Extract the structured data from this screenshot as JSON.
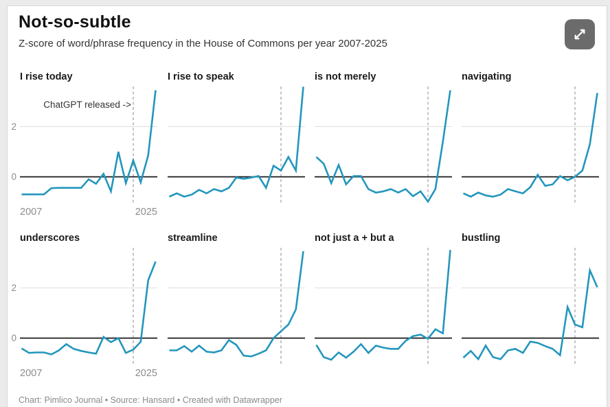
{
  "header": {
    "title": "Not-so-subtle",
    "subtitle": "Z-score of word/phrase frequency in the House of Commons per year 2007-2025"
  },
  "controls": {
    "expand_button": "expand-chart"
  },
  "footer": {
    "text": "Chart: Pimlico Journal • Source: Hansard • Created with Datawrapper"
  },
  "colors": {
    "line": "#2396bd",
    "zero_line": "#1a1a1a",
    "gridline": "#dedede",
    "dashed_line": "#ababab",
    "tick_label": "#8c8c8c",
    "annotation": "#333333",
    "expand_bg": "#6b6b6b"
  },
  "chart_data": {
    "type": "line",
    "layout": "small-multiples-2x4",
    "title": "Not-so-subtle",
    "subtitle": "Z-score of word/phrase frequency in the House of Commons per year 2007-2025",
    "x": [
      2007,
      2008,
      2009,
      2010,
      2011,
      2012,
      2013,
      2014,
      2015,
      2016,
      2017,
      2018,
      2019,
      2020,
      2021,
      2022,
      2023,
      2024,
      2025
    ],
    "x_tick_labels": [
      "2007",
      "2025"
    ],
    "y_ticks": [
      2,
      0
    ],
    "ylim": [
      -1.05,
      3.6
    ],
    "grid": "y-gridline-at-2, solid-baseline-at-0",
    "legend": "none",
    "vline": {
      "x": 2022,
      "style": "dashed",
      "shown_on": "all panels"
    },
    "annotation": {
      "text": "ChatGPT released ->",
      "panel": "I rise today",
      "points_to": "dashed vline"
    },
    "series": [
      {
        "name": "I rise today",
        "values": [
          -0.7,
          -0.7,
          -0.7,
          -0.7,
          -0.45,
          -0.44,
          -0.44,
          -0.44,
          -0.44,
          -0.1,
          -0.28,
          0.12,
          -0.58,
          1.0,
          -0.25,
          0.65,
          -0.22,
          0.85,
          3.45
        ]
      },
      {
        "name": "I rise to speak",
        "values": [
          -0.79,
          -0.66,
          -0.79,
          -0.71,
          -0.52,
          -0.66,
          -0.49,
          -0.58,
          -0.44,
          -0.03,
          -0.08,
          -0.03,
          0.03,
          -0.44,
          0.44,
          0.25,
          0.79,
          0.25,
          3.59
        ]
      },
      {
        "name": "is not merely",
        "values": [
          0.79,
          0.52,
          -0.25,
          0.47,
          -0.3,
          0.03,
          0.03,
          -0.49,
          -0.63,
          -0.58,
          -0.49,
          -0.63,
          -0.49,
          -0.77,
          -0.58,
          -0.99,
          -0.49,
          1.4,
          3.45
        ]
      },
      {
        "name": "navigating",
        "values": [
          -0.66,
          -0.79,
          -0.63,
          -0.74,
          -0.79,
          -0.71,
          -0.49,
          -0.58,
          -0.66,
          -0.41,
          0.08,
          -0.36,
          -0.3,
          0.03,
          -0.14,
          0.0,
          0.25,
          1.3,
          3.34
        ]
      },
      {
        "name": "underscores",
        "values": [
          -0.41,
          -0.59,
          -0.57,
          -0.57,
          -0.65,
          -0.49,
          -0.24,
          -0.43,
          -0.51,
          -0.57,
          -0.62,
          0.05,
          -0.16,
          0.0,
          -0.59,
          -0.46,
          -0.15,
          2.3,
          3.05
        ]
      },
      {
        "name": "streamline",
        "values": [
          -0.49,
          -0.49,
          -0.32,
          -0.54,
          -0.3,
          -0.54,
          -0.57,
          -0.49,
          -0.08,
          -0.27,
          -0.7,
          -0.73,
          -0.62,
          -0.49,
          0.0,
          0.27,
          0.54,
          1.14,
          3.46
        ]
      },
      {
        "name": "not just a + but a",
        "values": [
          -0.27,
          -0.76,
          -0.86,
          -0.57,
          -0.78,
          -0.54,
          -0.24,
          -0.59,
          -0.3,
          -0.38,
          -0.43,
          -0.43,
          -0.11,
          0.08,
          0.14,
          -0.03,
          0.35,
          0.19,
          3.51
        ]
      },
      {
        "name": "bustling",
        "values": [
          -0.78,
          -0.51,
          -0.84,
          -0.3,
          -0.76,
          -0.84,
          -0.49,
          -0.43,
          -0.59,
          -0.14,
          -0.19,
          -0.32,
          -0.43,
          -0.68,
          1.24,
          0.54,
          0.43,
          2.7,
          2.03
        ]
      }
    ]
  }
}
